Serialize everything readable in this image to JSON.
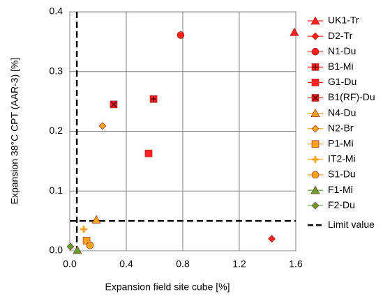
{
  "chart_data": {
    "type": "scatter",
    "xlabel": "Expansion field site cube [%]",
    "ylabel": "Expansion 38°C CPT (AAR-3) [%]",
    "xlim": [
      0,
      1.6
    ],
    "ylim": [
      0,
      0.4
    ],
    "xticks": [
      {
        "value": 0,
        "label": "0.0"
      },
      0.4,
      0.8,
      1.2,
      1.6
    ],
    "yticks": [
      {
        "value": 0,
        "label": "0.0"
      },
      0.1,
      0.2,
      0.3,
      0.4
    ],
    "grid": true,
    "legend": "right",
    "series": [
      {
        "name": "UK1-Tr",
        "color": "#ff2020",
        "marker": "triangle",
        "x": [
          1.59
        ],
        "y": [
          0.366
        ]
      },
      {
        "name": "D2-Tr",
        "color": "#ff2020",
        "marker": "diamond",
        "x": [
          1.43
        ],
        "y": [
          0.02
        ]
      },
      {
        "name": "N1-Du",
        "color": "#ff2020",
        "marker": "circle",
        "x": [
          0.785
        ],
        "y": [
          0.361
        ]
      },
      {
        "name": "B1-Mi",
        "color": "#ff2020",
        "marker": "square-plus",
        "x": [
          0.593
        ],
        "y": [
          0.254
        ]
      },
      {
        "name": "G1-Du",
        "color": "#ff2020",
        "marker": "square",
        "x": [
          0.558
        ],
        "y": [
          0.163
        ]
      },
      {
        "name": "B1(RF)-Du",
        "color": "#ff2020",
        "marker": "square-x",
        "x": [
          0.311
        ],
        "y": [
          0.245
        ]
      },
      {
        "name": "N4-Du",
        "color": "#f7a21b",
        "marker": "triangle",
        "x": [
          0.188
        ],
        "y": [
          0.052
        ]
      },
      {
        "name": "N2-Br",
        "color": "#f7a21b",
        "marker": "diamond",
        "x": [
          0.232
        ],
        "y": [
          0.209
        ]
      },
      {
        "name": "P1-Mi",
        "color": "#f7a21b",
        "marker": "square",
        "x": [
          0.119
        ],
        "y": [
          0.017
        ]
      },
      {
        "name": "IT2-Mi",
        "color": "#f7a21b",
        "marker": "plus",
        "x": [
          0.099
        ],
        "y": [
          0.036
        ]
      },
      {
        "name": "S1-Du",
        "color": "#f7a21b",
        "marker": "circle",
        "x": [
          0.143
        ],
        "y": [
          0.009
        ]
      },
      {
        "name": "F1-Mi",
        "color": "#5fa22e",
        "marker": "triangle",
        "x": [
          0.054
        ],
        "y": [
          0.001
        ]
      },
      {
        "name": "F2-Du",
        "color": "#5fa22e",
        "marker": "diamond",
        "x": [
          0.005
        ],
        "y": [
          0.007
        ]
      }
    ],
    "limit_value": {
      "name": "Limit value",
      "x": 0.05,
      "y": 0.05,
      "color": "#000000"
    }
  }
}
